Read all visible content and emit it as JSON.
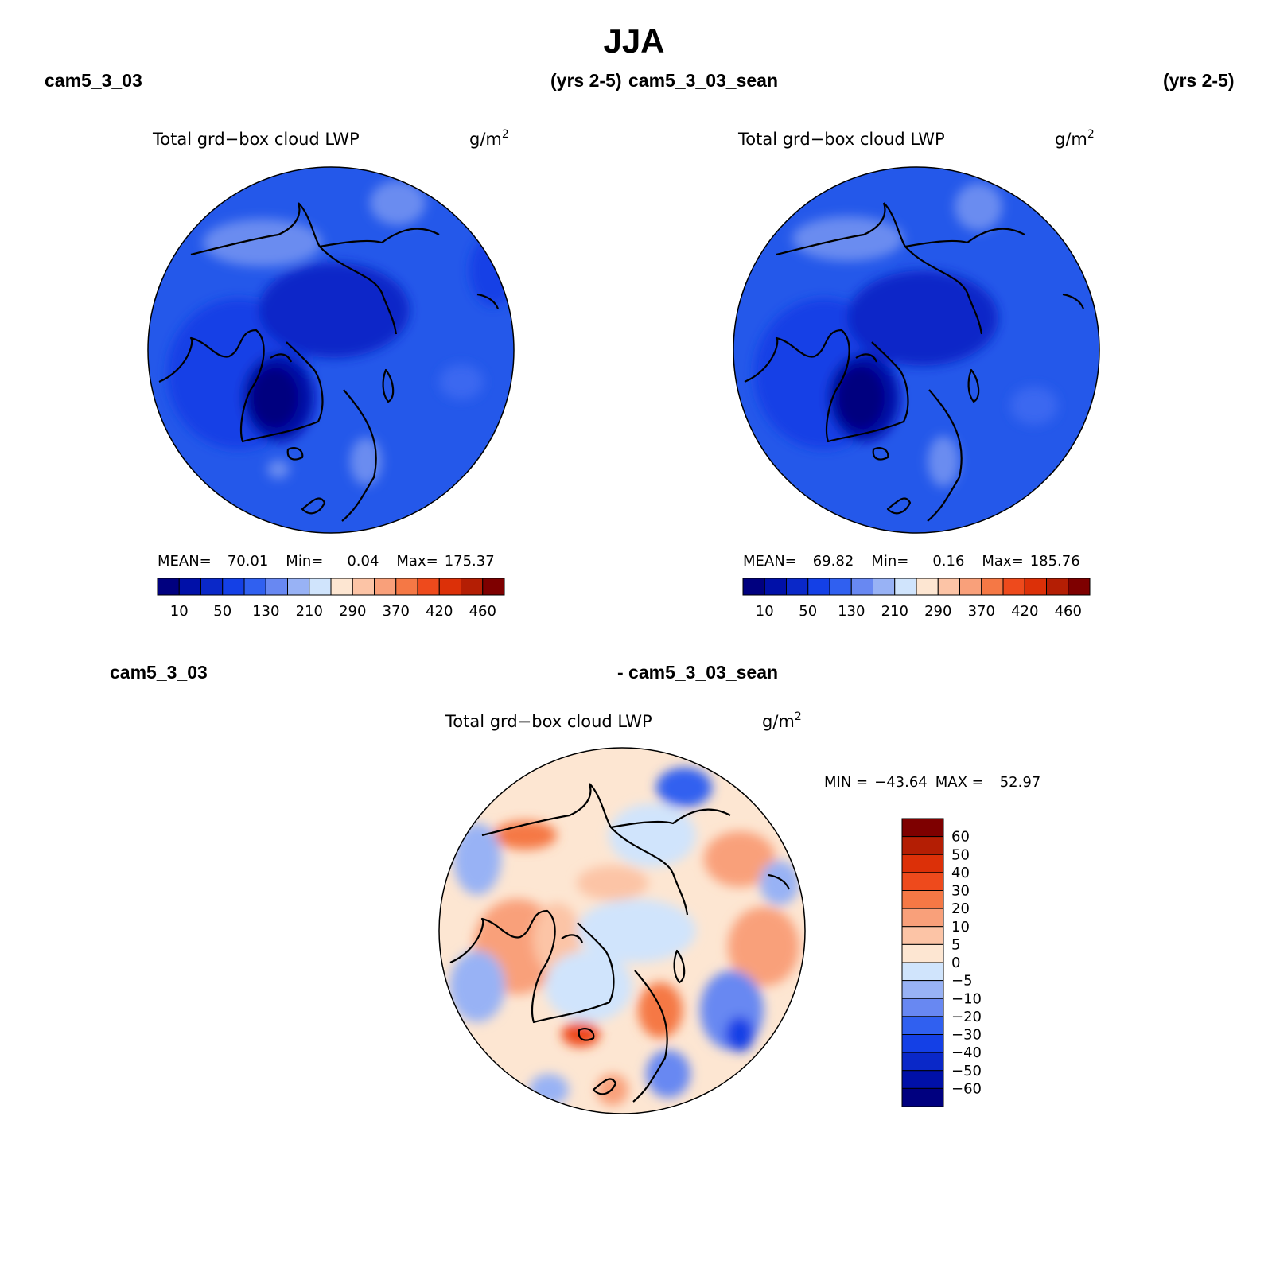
{
  "title": "JJA",
  "panels": [
    {
      "case_label": "cam5_3_03",
      "years_label": "(yrs 2-5)",
      "field_title": "Total grd−box cloud LWP",
      "units": "g/m",
      "units_exp": "2",
      "stats": {
        "mean_label": "MEAN=",
        "mean": "70.01",
        "min_label": "Min=",
        "min": "0.04",
        "max_label": "Max=",
        "max": "175.37"
      }
    },
    {
      "case_label": "cam5_3_03_sean",
      "years_label": "(yrs 2-5)",
      "field_title": "Total grd−box cloud LWP",
      "units": "g/m",
      "units_exp": "2",
      "stats": {
        "mean_label": "MEAN=",
        "mean": "69.82",
        "min_label": "Min=",
        "min": "0.16",
        "max_label": "Max=",
        "max": "185.76"
      }
    }
  ],
  "diff_panel": {
    "left_label": "cam5_3_03",
    "right_label": "- cam5_3_03_sean",
    "field_title": "Total grd−box cloud LWP",
    "units": "g/m",
    "units_exp": "2",
    "minmax": {
      "min_label": "MIN =",
      "min": "−43.64",
      "max_label": "MAX =",
      "max": "52.97"
    }
  },
  "colors": {
    "field_scale": [
      "#00007f",
      "#0010a8",
      "#0a28c8",
      "#1440e6",
      "#3060f0",
      "#6888f2",
      "#98b2f5",
      "#d0e4fc",
      "#fde6d2",
      "#fcc4a6",
      "#f9a07a",
      "#f57845",
      "#ee4a1c",
      "#dc3008",
      "#b41e04",
      "#7e0000"
    ],
    "diff_scale": [
      "#7e0000",
      "#b41e04",
      "#dc3008",
      "#ee4a1c",
      "#f57845",
      "#f9a07a",
      "#fcc4a6",
      "#fde6d2",
      "#d0e4fc",
      "#98b2f5",
      "#6888f2",
      "#3060f0",
      "#1440e6",
      "#0a28c8",
      "#0010a8",
      "#00007f"
    ]
  },
  "chart_data": [
    {
      "type": "heatmap",
      "projection": "north polar stereographic",
      "title": "Total grd−box cloud LWP",
      "units": "g/m2",
      "case": "cam5_3_03",
      "period": "(yrs 2-5)",
      "season": "JJA",
      "mean": 70.01,
      "min": 0.04,
      "max": 175.37,
      "colorbar_ticks": [
        "10",
        "50",
        "130",
        "210",
        "290",
        "370",
        "420",
        "460"
      ],
      "colorbar_levels": 16
    },
    {
      "type": "heatmap",
      "projection": "north polar stereographic",
      "title": "Total grd−box cloud LWP",
      "units": "g/m2",
      "case": "cam5_3_03_sean",
      "period": "(yrs 2-5)",
      "season": "JJA",
      "mean": 69.82,
      "min": 0.16,
      "max": 185.76,
      "colorbar_ticks": [
        "10",
        "50",
        "130",
        "210",
        "290",
        "370",
        "420",
        "460"
      ],
      "colorbar_levels": 16
    },
    {
      "type": "heatmap",
      "projection": "north polar stereographic",
      "title": "Total grd−box cloud LWP",
      "units": "g/m2",
      "case": "cam5_3_03 - cam5_3_03_sean",
      "season": "JJA",
      "min": -43.64,
      "max": 52.97,
      "colorbar_ticks": [
        "60",
        "50",
        "40",
        "30",
        "20",
        "10",
        "5",
        "0",
        "−5",
        "−10",
        "−20",
        "−30",
        "−40",
        "−50",
        "−60"
      ],
      "colorbar_levels": 16
    }
  ]
}
